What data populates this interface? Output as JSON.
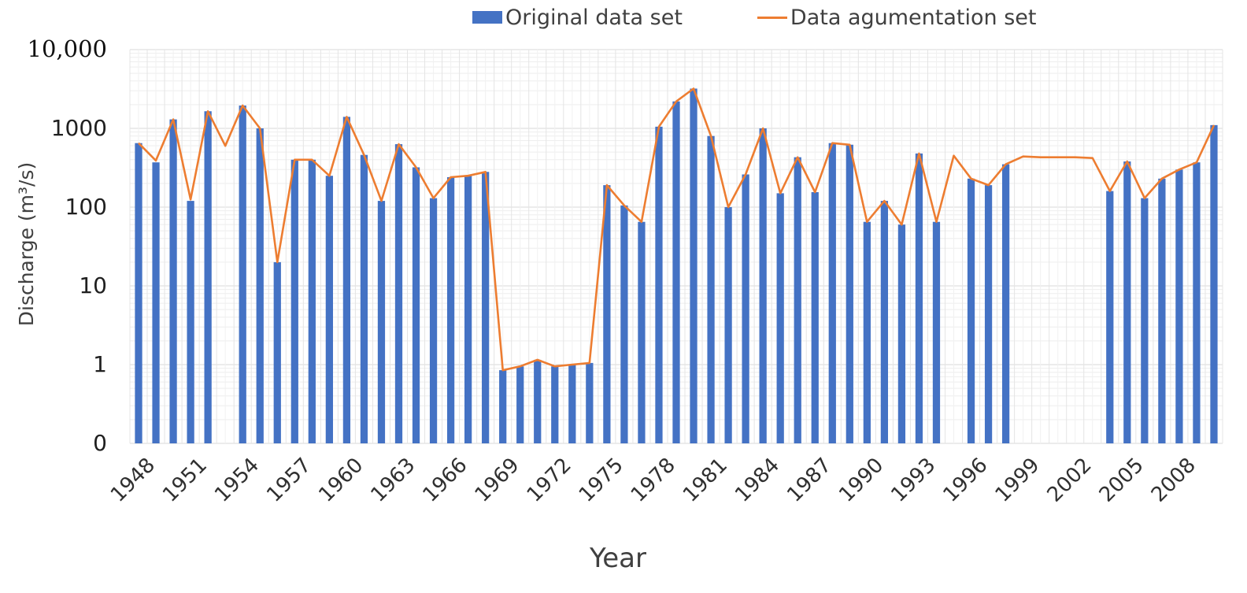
{
  "chart_data": {
    "type": "bar",
    "title": "",
    "xlabel": "Year",
    "ylabel": "Discharge  (m³/s)",
    "y_scale": "log",
    "ylim": [
      0.1,
      10000
    ],
    "yticks": [
      {
        "value": 10000,
        "label": "10,000"
      },
      {
        "value": 1000,
        "label": "1000"
      },
      {
        "value": 100,
        "label": "100"
      },
      {
        "value": 10,
        "label": "10"
      },
      {
        "value": 1,
        "label": "1"
      },
      {
        "value": 0.1,
        "label": "0"
      }
    ],
    "xticks": [
      "1948",
      "1951",
      "1954",
      "1957",
      "1960",
      "1963",
      "1966",
      "1969",
      "1972",
      "1975",
      "1978",
      "1981",
      "1984",
      "1987",
      "1990",
      "1993",
      "1996",
      "1999",
      "2002",
      "2005",
      "2008"
    ],
    "grid": true,
    "legend_position": "top",
    "colors": {
      "bars": "#4472C4",
      "line": "#ED7D31"
    },
    "categories": [
      "1948",
      "1949",
      "1950",
      "1951",
      "1952",
      "1953",
      "1954",
      "1955",
      "1956",
      "1957",
      "1958",
      "1959",
      "1960",
      "1961",
      "1962",
      "1963",
      "1964",
      "1965",
      "1966",
      "1967",
      "1968",
      "1969",
      "1970",
      "1971",
      "1972",
      "1973",
      "1974",
      "1975",
      "1976",
      "1977",
      "1978",
      "1979",
      "1980",
      "1981",
      "1982",
      "1983",
      "1984",
      "1985",
      "1986",
      "1987",
      "1988",
      "1989",
      "1990",
      "1991",
      "1992",
      "1993",
      "1994",
      "1995",
      "1996",
      "1997",
      "1998",
      "1999",
      "2000",
      "2001",
      "2002",
      "2003",
      "2004",
      "2005",
      "2006",
      "2007",
      "2008",
      "2009",
      "2010"
    ],
    "series": [
      {
        "name": "Original data set",
        "type": "bar",
        "values": [
          650,
          370,
          1300,
          120,
          1650,
          null,
          1950,
          1000,
          20,
          400,
          400,
          250,
          1400,
          460,
          120,
          630,
          320,
          130,
          240,
          250,
          280,
          0.85,
          0.95,
          1.15,
          0.95,
          1.0,
          1.05,
          190,
          105,
          65,
          1050,
          2200,
          3200,
          800,
          100,
          260,
          1000,
          150,
          430,
          155,
          650,
          620,
          65,
          120,
          60,
          480,
          65,
          null,
          230,
          190,
          350,
          null,
          null,
          null,
          null,
          null,
          160,
          380,
          130,
          230,
          300,
          370,
          1100
        ]
      },
      {
        "name": "Data agumentation set",
        "type": "line",
        "values": [
          650,
          390,
          1300,
          125,
          1650,
          600,
          1950,
          1000,
          20,
          400,
          400,
          250,
          1400,
          460,
          120,
          630,
          320,
          130,
          240,
          250,
          280,
          0.85,
          0.95,
          1.15,
          0.95,
          1.0,
          1.05,
          190,
          105,
          65,
          1050,
          2200,
          3200,
          800,
          100,
          260,
          1000,
          150,
          430,
          155,
          650,
          620,
          65,
          120,
          60,
          480,
          65,
          450,
          230,
          190,
          350,
          440,
          430,
          430,
          430,
          420,
          160,
          380,
          130,
          230,
          300,
          370,
          1100
        ]
      }
    ]
  }
}
